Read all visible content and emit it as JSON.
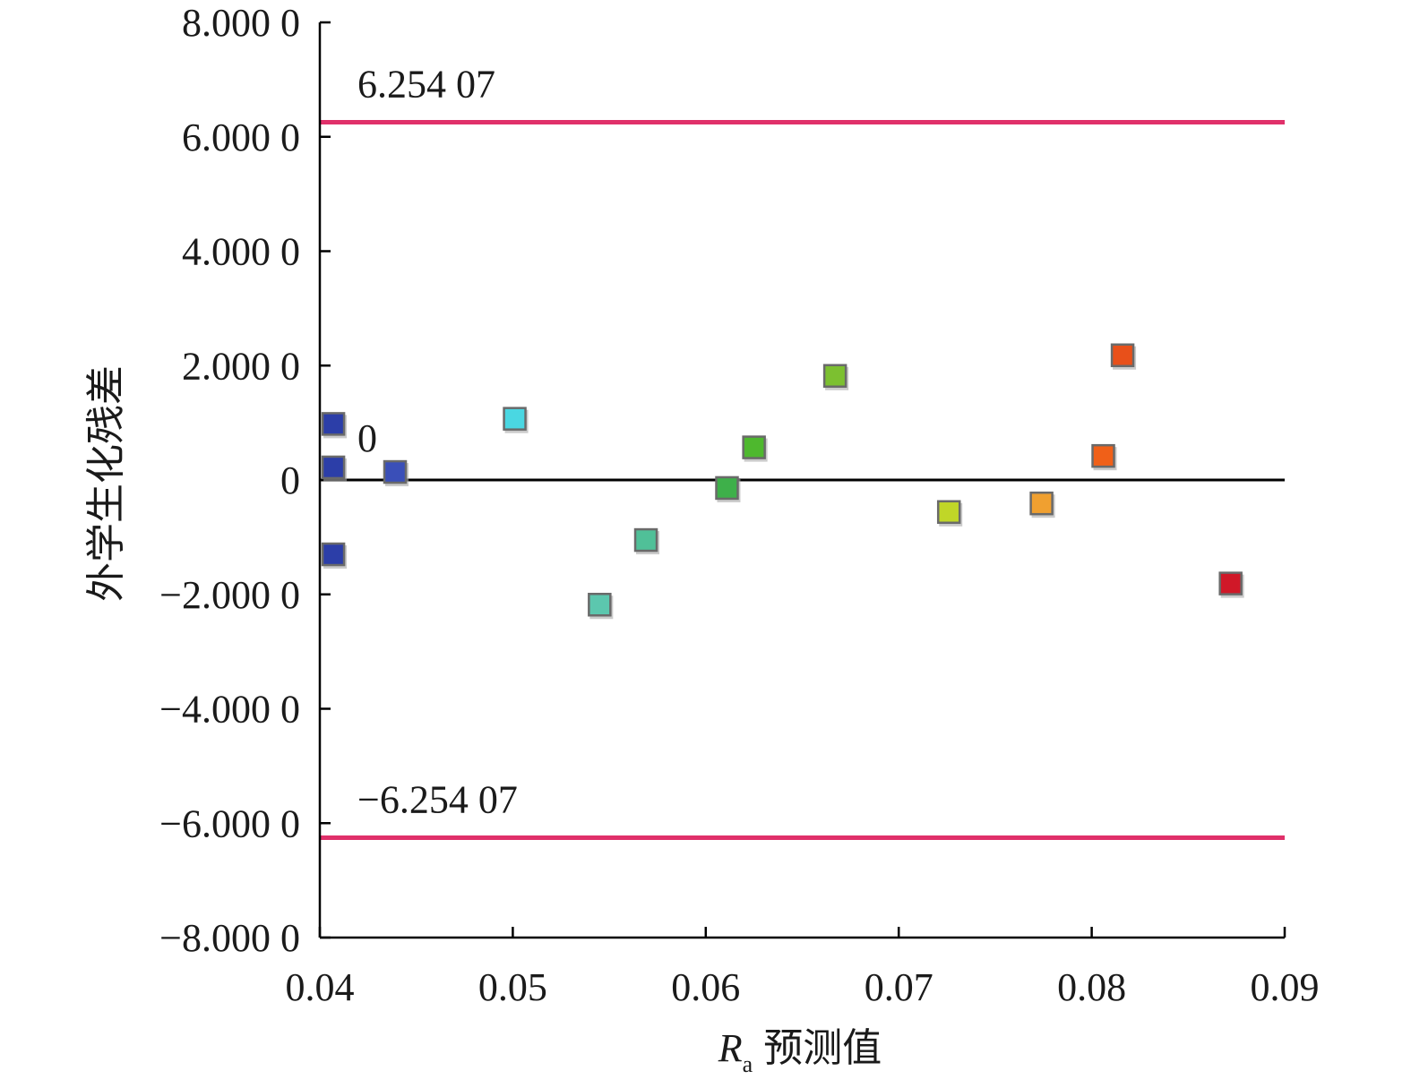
{
  "chart_data": {
    "type": "scatter",
    "title": "",
    "xlabel": {
      "symbol": "R",
      "subscript": "a",
      "text": "预测值"
    },
    "ylabel": "外学生化残差",
    "xlim": [
      0.04,
      0.09
    ],
    "ylim": [
      -8,
      8
    ],
    "x_ticks": [
      0.04,
      0.05,
      0.06,
      0.07,
      0.08,
      0.09
    ],
    "x_tick_labels": [
      "0.04",
      "0.05",
      "0.06",
      "0.07",
      "0.08",
      "0.09"
    ],
    "y_ticks": [
      8,
      6,
      4,
      2,
      0,
      -2,
      -4,
      -6,
      -8
    ],
    "y_tick_labels": [
      "8.000 0",
      "6.000 0",
      "4.000 0",
      "2.000 0",
      "0",
      "−2.000 0",
      "−4.000 0",
      "−6.000 0",
      "−8.000 0"
    ],
    "grid": false,
    "reference_lines": [
      {
        "y": 6.25407,
        "label": "6.254 07",
        "color": "#e0306a"
      },
      {
        "y": 0,
        "label": "0",
        "color": "#000000"
      },
      {
        "y": -6.25407,
        "label": "−6.254 07",
        "color": "#e0306a"
      }
    ],
    "points": [
      {
        "x": 0.0407,
        "y": 0.98,
        "color": "#2c3ea8"
      },
      {
        "x": 0.0407,
        "y": 0.22,
        "color": "#2c3ea8"
      },
      {
        "x": 0.0407,
        "y": -1.3,
        "color": "#2c3ea8"
      },
      {
        "x": 0.0439,
        "y": 0.14,
        "color": "#3a4fb8"
      },
      {
        "x": 0.0501,
        "y": 1.07,
        "color": "#4ad7e2"
      },
      {
        "x": 0.0545,
        "y": -2.18,
        "color": "#5cc7ae"
      },
      {
        "x": 0.0569,
        "y": -1.05,
        "color": "#50c098"
      },
      {
        "x": 0.0611,
        "y": -0.14,
        "color": "#3eb04a"
      },
      {
        "x": 0.0625,
        "y": 0.57,
        "color": "#4eb82e"
      },
      {
        "x": 0.0667,
        "y": 1.82,
        "color": "#7cc030"
      },
      {
        "x": 0.0726,
        "y": -0.56,
        "color": "#c0d628"
      },
      {
        "x": 0.0774,
        "y": -0.41,
        "color": "#f0a030"
      },
      {
        "x": 0.0806,
        "y": 0.42,
        "color": "#f06018"
      },
      {
        "x": 0.0816,
        "y": 2.18,
        "color": "#e8501a"
      },
      {
        "x": 0.0872,
        "y": -1.81,
        "color": "#d01828"
      }
    ]
  }
}
